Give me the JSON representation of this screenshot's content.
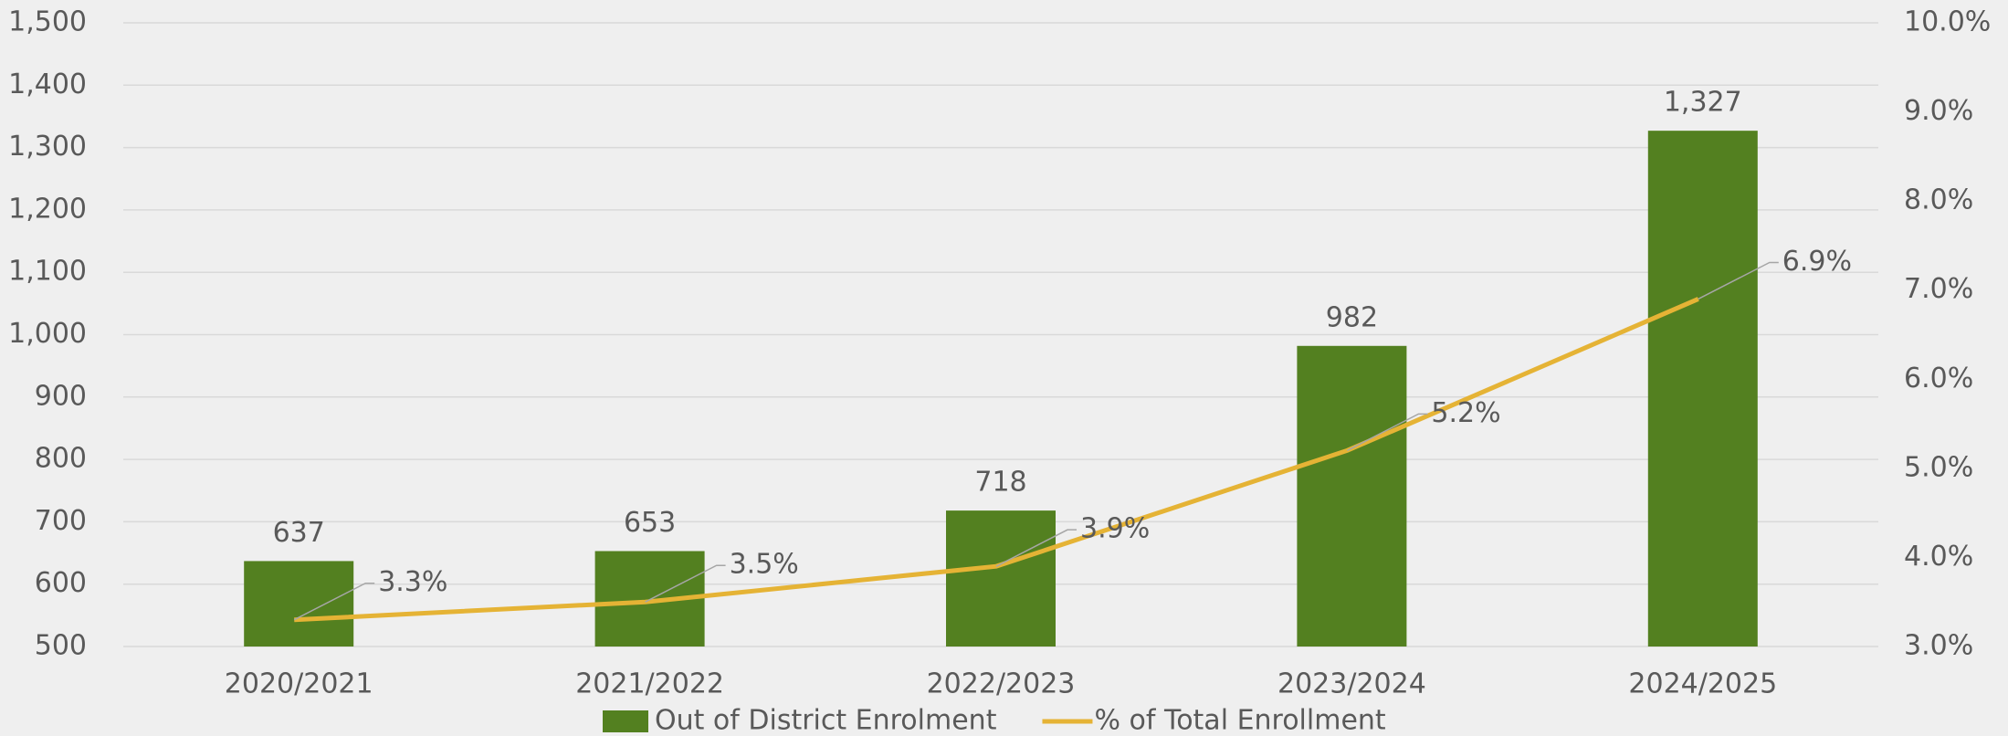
{
  "chart_data": {
    "type": "bar",
    "categories": [
      "2020/2021",
      "2021/2022",
      "2022/2023",
      "2023/2024",
      "2024/2025"
    ],
    "series": [
      {
        "name": "Out of District Enrolment",
        "type": "bar",
        "color": "#538020",
        "values": [
          637,
          653,
          718,
          982,
          1327
        ],
        "value_labels": [
          "637",
          "653",
          "718",
          "982",
          "1,327"
        ]
      },
      {
        "name": "% of Total Enrollment",
        "type": "line",
        "axis": "y2",
        "color": "#e5b335",
        "values": [
          3.3,
          3.5,
          3.9,
          5.2,
          6.9
        ],
        "value_labels": [
          "3.3%",
          "3.5%",
          "3.9%",
          "5.2%",
          "6.9%"
        ]
      }
    ],
    "ylim": [
      500,
      1500
    ],
    "yticks": [
      500,
      600,
      700,
      800,
      900,
      {
        "value": 1000,
        "label": "1,000"
      },
      {
        "value": 1100,
        "label": "1,100"
      },
      {
        "value": 1200,
        "label": "1,200"
      },
      {
        "value": 1300,
        "label": "1,300"
      },
      {
        "value": 1400,
        "label": "1,400"
      },
      {
        "value": 1500,
        "label": "1,500"
      }
    ],
    "y2lim": [
      3,
      10
    ],
    "y2ticks": [
      {
        "value": 3,
        "label": "3.0%"
      },
      {
        "value": 4,
        "label": "4.0%"
      },
      {
        "value": 5,
        "label": "5.0%"
      },
      {
        "value": 6,
        "label": "6.0%"
      },
      {
        "value": 7,
        "label": "7.0%"
      },
      {
        "value": 8,
        "label": "8.0%"
      },
      {
        "value": 9,
        "label": "9.0%"
      },
      {
        "value": 10,
        "label": "10.0%"
      }
    ],
    "grid": true,
    "legend": "bottom"
  }
}
